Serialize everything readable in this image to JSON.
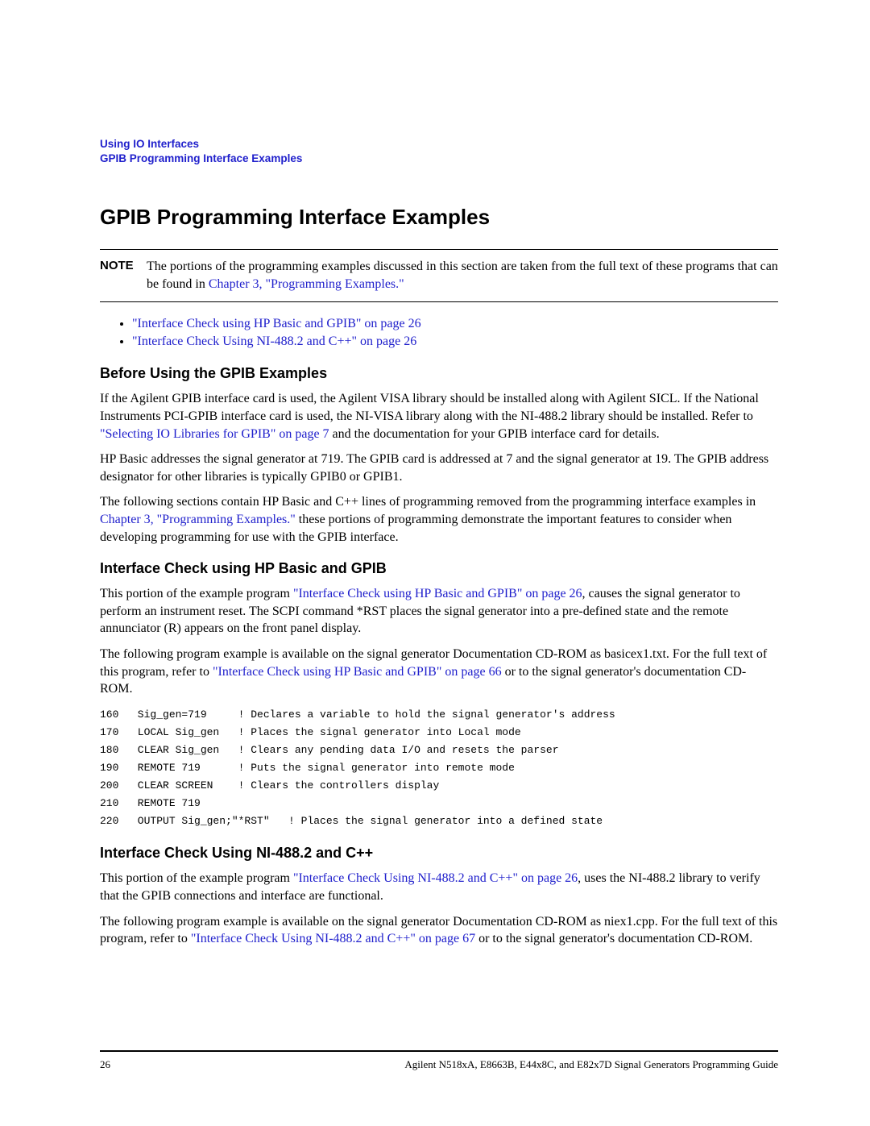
{
  "colors": {
    "link": "#2020cc",
    "text": "#000000",
    "background": "#ffffff"
  },
  "fonts": {
    "sans": "Arial, Helvetica, sans-serif",
    "serif": "Times New Roman, Georgia, serif",
    "mono": "Courier New, monospace",
    "title_size_pt": 20,
    "sub_size_pt": 14,
    "body_size_pt": 12,
    "code_size_pt": 10,
    "breadcrumb_size_pt": 10
  },
  "breadcrumb": {
    "line1": "Using IO Interfaces",
    "line2": "GPIB Programming Interface Examples"
  },
  "title": "GPIB Programming Interface Examples",
  "note": {
    "label": "NOTE",
    "body_1": "The portions of the programming examples discussed in this section are taken from the full text of these programs that can be found in ",
    "link_1": "Chapter 3, \"Programming Examples.\""
  },
  "bullets": [
    "\"Interface Check using HP Basic and GPIB\" on page 26",
    "\"Interface Check Using NI-488.2 and C++\" on page 26"
  ],
  "section_before": {
    "heading": "Before Using the GPIB Examples",
    "p1_a": "If the Agilent GPIB interface card is used, the Agilent VISA library should be installed along with Agilent SICL. If the National Instruments PCI-GPIB interface card is used, the NI-VISA library along with the NI-488.2 library should be installed. Refer to ",
    "p1_link": "\"Selecting IO Libraries for GPIB\" on page 7",
    "p1_b": " and the documentation for your GPIB interface card for details.",
    "p2": "HP Basic addresses the signal generator at 719. The GPIB card is addressed at 7 and the signal generator at 19. The GPIB address designator for other libraries is typically GPIB0 or GPIB1.",
    "p3_a": "The following sections contain HP Basic and C++ lines of programming removed from the programming interface examples in ",
    "p3_link": "Chapter 3, \"Programming Examples.\"",
    "p3_b": " these portions of programming demonstrate the important features to consider when developing programming for use with the GPIB interface."
  },
  "section_hp": {
    "heading": "Interface Check using HP Basic and GPIB",
    "p1_a": "This portion of the example program ",
    "p1_link": "\"Interface Check using HP Basic and GPIB\" on page 26",
    "p1_b": ", causes the signal generator to perform an instrument reset. The SCPI command *RST places the signal generator into a pre-defined state and the remote annunciator (R) appears on the front panel display.",
    "p2_a": "The following program example is available on the signal generator Documentation CD-ROM as basicex1.txt. For the full text of this program, refer to ",
    "p2_link": "\"Interface Check using HP Basic and GPIB\" on page 66",
    "p2_b": " or to the signal generator's documentation CD-ROM.",
    "code": "160   Sig_gen=719     ! Declares a variable to hold the signal generator's address\n170   LOCAL Sig_gen   ! Places the signal generator into Local mode\n180   CLEAR Sig_gen   ! Clears any pending data I/O and resets the parser\n190   REMOTE 719      ! Puts the signal generator into remote mode\n200   CLEAR SCREEN    ! Clears the controllers display\n210   REMOTE 719\n220   OUTPUT Sig_gen;\"*RST\"   ! Places the signal generator into a defined state"
  },
  "section_ni": {
    "heading": "Interface Check Using NI-488.2 and C++",
    "p1_a": "This portion of the example program ",
    "p1_link": "\"Interface Check Using NI-488.2 and C++\" on page 26",
    "p1_b": ", uses the NI-488.2 library to verify that the GPIB connections and interface are functional.",
    "p2_a": "The following program example is available on the signal generator Documentation CD-ROM as niex1.cpp. For the full text of this program, refer to ",
    "p2_link": "\"Interface Check Using NI-488.2 and C++\" on page 67",
    "p2_b": " or to the signal generator's documentation CD-ROM."
  },
  "footer": {
    "page_number": "26",
    "text": "Agilent N518xA, E8663B, E44x8C, and E82x7D Signal Generators Programming Guide"
  }
}
